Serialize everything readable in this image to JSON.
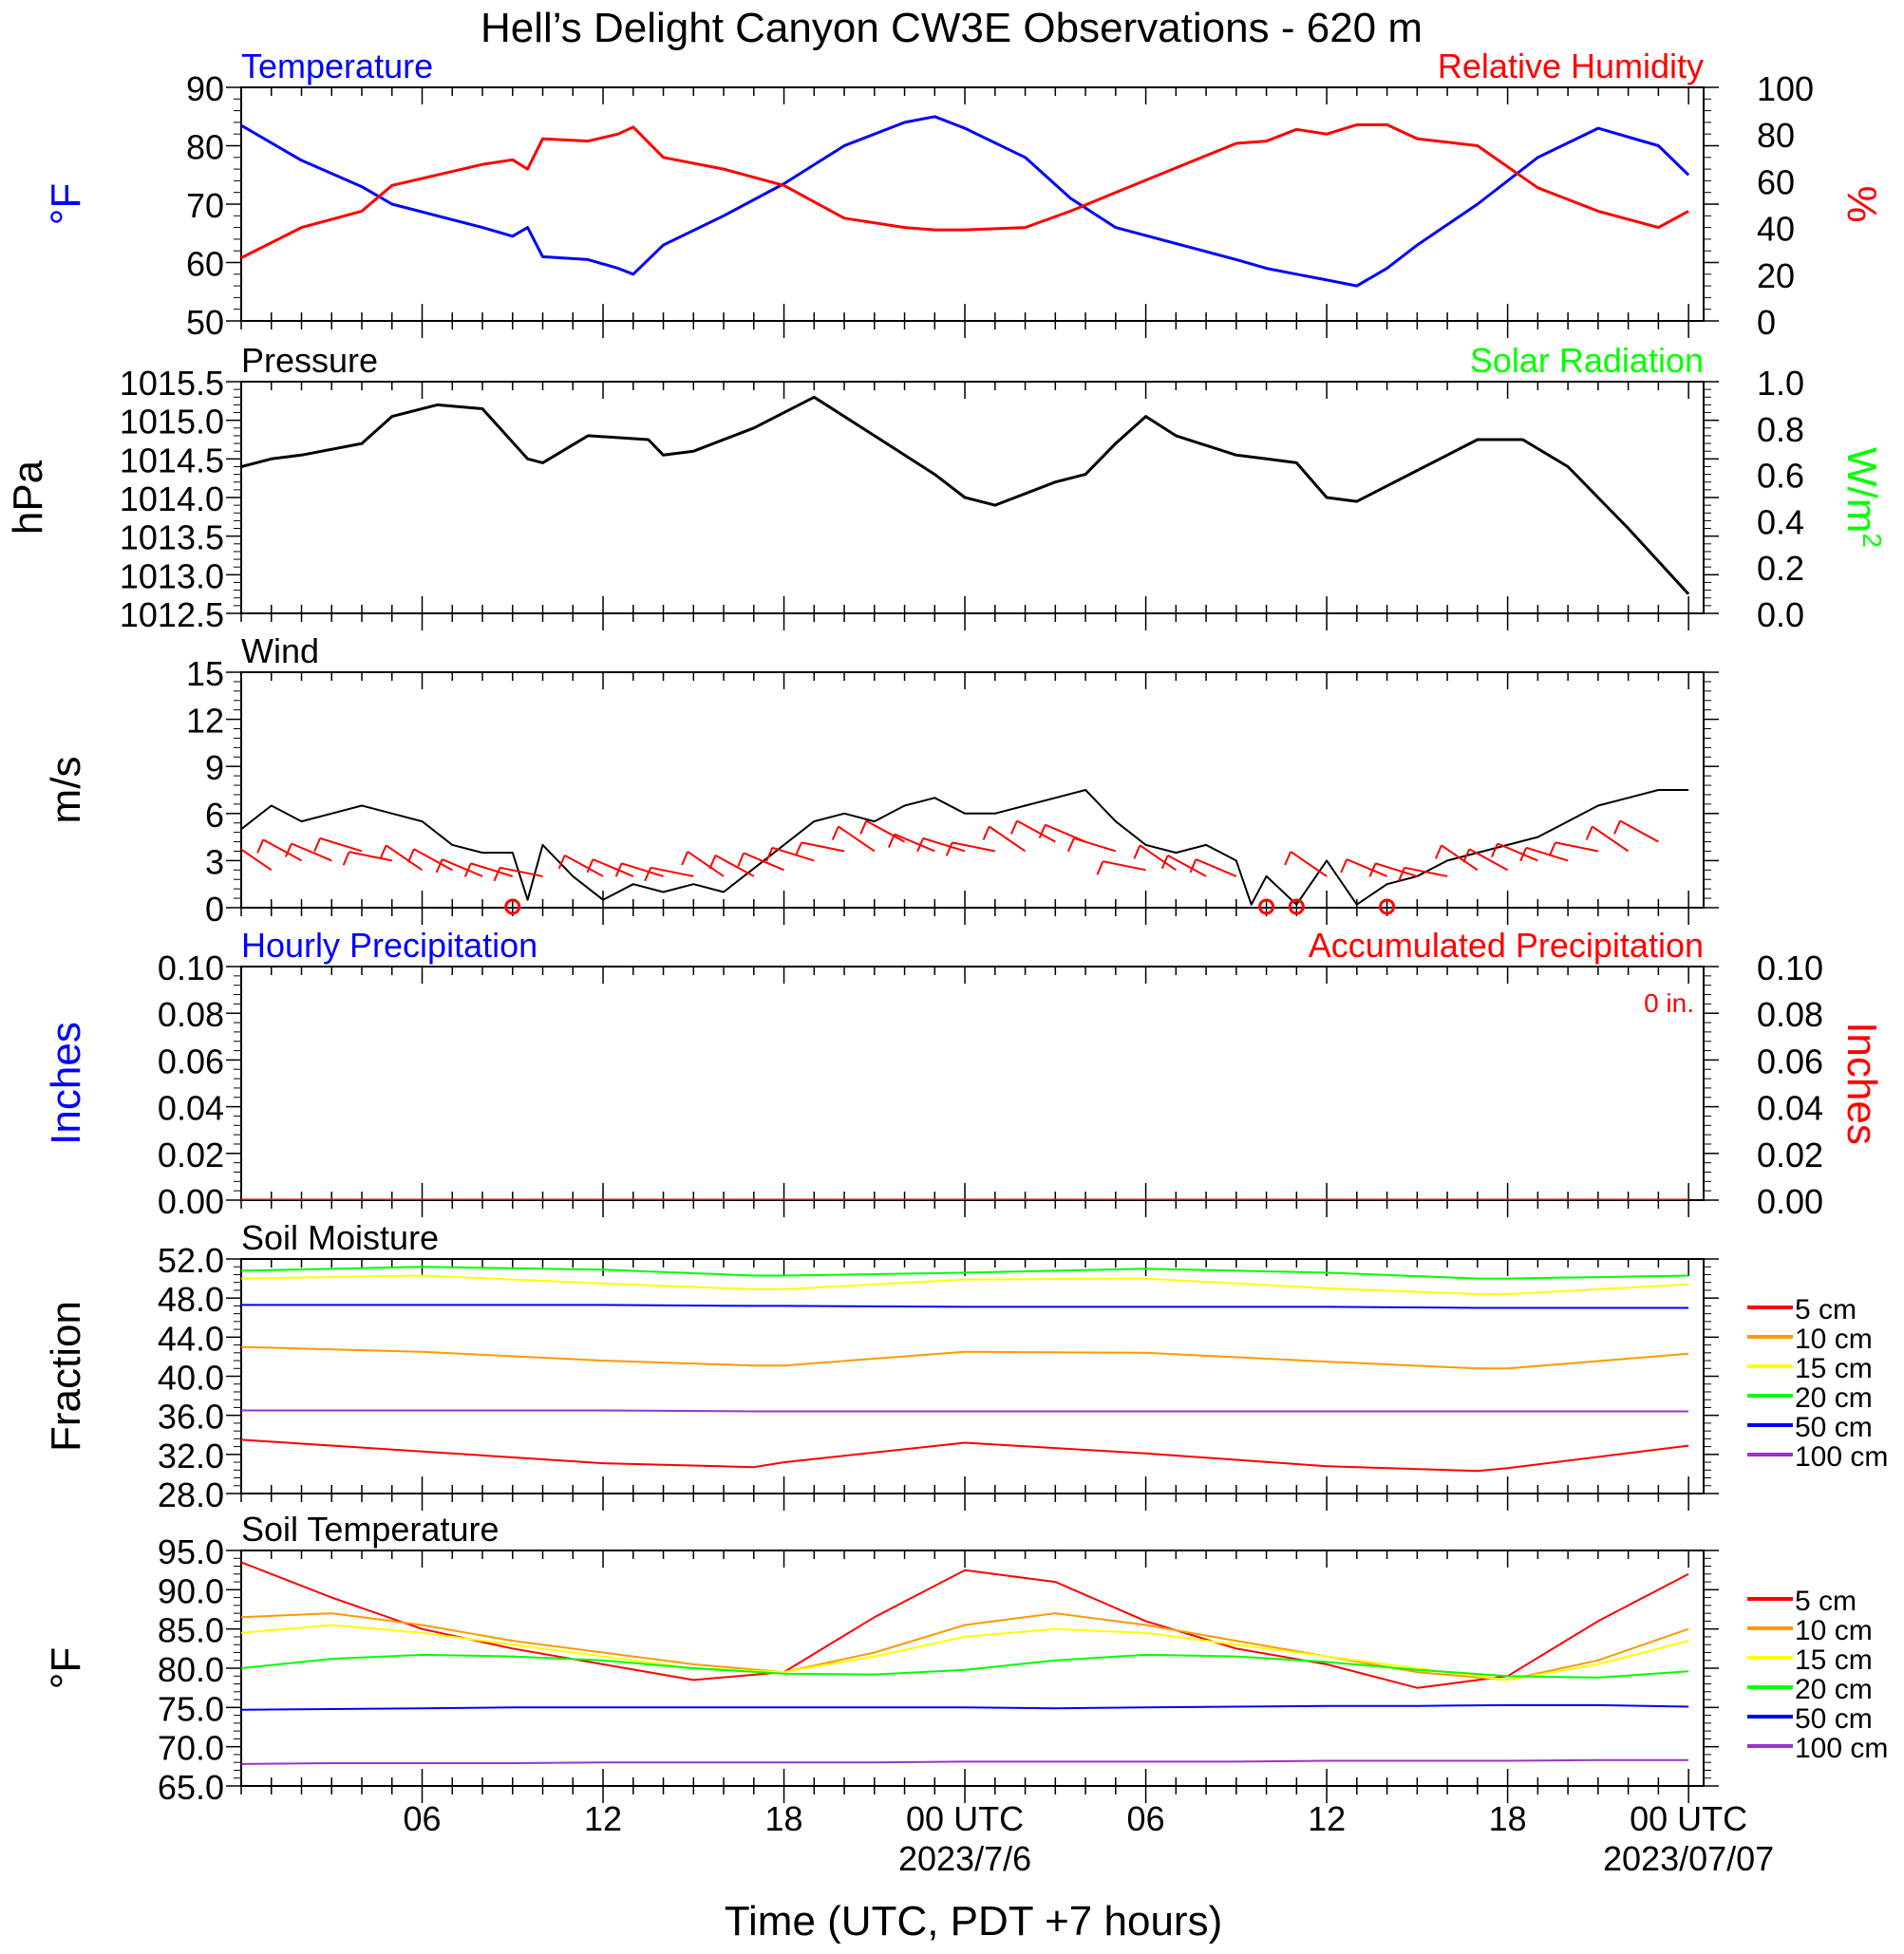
{
  "title": "Hell’s Delight Canyon CW3E Observations - 620 m",
  "xaxis": {
    "label": "Time (UTC, PDT +7 hours)",
    "ticks": [
      "06",
      "12",
      "18",
      "00 UTC",
      "06",
      "12",
      "18",
      "00 UTC"
    ],
    "dates": [
      "2023/7/6",
      "2023/07/07"
    ]
  },
  "colors": {
    "temperature": "#0000ff",
    "humidity": "#ff0000",
    "pressure": "#000000",
    "solar": "#00ff00",
    "wind_speed": "#000000",
    "wind_barb": "#ff0000",
    "hourly_precip": "#0000ff",
    "accum_precip": "#ff0000"
  },
  "chart_data": [
    {
      "type": "line",
      "panel": "temperature_humidity",
      "left_title": "Temperature",
      "right_title": "Relative Humidity",
      "ylabel_left": "°F",
      "ylabel_right": "%",
      "ylim_left": [
        50,
        90
      ],
      "ylim_right": [
        0,
        100
      ],
      "yticks_left": [
        "90",
        "80",
        "70",
        "60",
        "50"
      ],
      "yticks_right": [
        "100",
        "80",
        "60",
        "40",
        "20",
        "0"
      ],
      "x_hours": [
        0,
        2,
        4,
        5,
        8,
        9,
        9.5,
        10,
        11.5,
        12.5,
        13,
        14,
        16,
        18,
        20,
        22,
        23,
        24,
        26,
        27.5,
        29,
        33,
        34,
        35,
        36,
        37,
        38,
        39,
        41,
        43,
        45,
        47,
        48
      ],
      "series": [
        {
          "name": "Temperature",
          "axis": "left",
          "values": [
            83.5,
            77.5,
            73,
            70,
            66,
            64.5,
            66,
            61,
            60.5,
            59,
            58,
            63,
            68,
            73.5,
            80,
            84,
            85,
            83,
            78,
            71,
            66,
            60.5,
            59,
            58,
            57,
            56,
            59,
            63,
            70,
            78,
            83,
            80,
            75
          ]
        },
        {
          "name": "Relative Humidity",
          "axis": "right",
          "values": [
            27,
            40,
            47,
            58,
            67,
            69,
            65,
            78,
            77,
            80,
            83,
            70,
            65,
            58,
            44,
            40,
            39,
            39,
            40,
            47,
            55,
            76,
            77,
            82,
            80,
            84,
            84,
            78,
            75,
            57,
            47,
            40,
            47
          ]
        }
      ]
    },
    {
      "type": "line",
      "panel": "pressure_solar",
      "left_title": "Pressure",
      "right_title": "Solar Radiation",
      "ylabel_left": "hPa",
      "ylabel_right": "W/m",
      "ylabel_right_sup": "2",
      "ylim_left": [
        1012.5,
        1015.5
      ],
      "ylim_right": [
        0,
        1
      ],
      "yticks_left": [
        "1015.5",
        "1015.0",
        "1014.5",
        "1014.0",
        "1013.5",
        "1013.0",
        "1012.5"
      ],
      "yticks_right": [
        "1.0",
        "0.8",
        "0.6",
        "0.4",
        "0.2",
        "0.0"
      ],
      "x_hours": [
        0,
        1,
        2,
        4,
        5,
        6.5,
        8,
        9.5,
        10,
        11.5,
        13.5,
        14,
        15,
        17,
        19,
        21,
        23,
        24,
        25,
        27,
        28,
        29,
        30,
        31,
        33,
        34,
        35,
        36,
        37,
        39,
        40,
        41,
        42.5,
        44,
        46,
        48
      ],
      "series": [
        {
          "name": "Pressure",
          "axis": "left",
          "values": [
            1014.4,
            1014.5,
            1014.55,
            1014.7,
            1015.05,
            1015.2,
            1015.15,
            1014.5,
            1014.45,
            1014.8,
            1014.75,
            1014.55,
            1014.6,
            1014.9,
            1015.3,
            1014.8,
            1014.3,
            1014.0,
            1013.9,
            1014.2,
            1014.3,
            1014.7,
            1015.05,
            1014.8,
            1014.55,
            1014.5,
            1014.45,
            1014.0,
            1013.95,
            1014.35,
            1014.55,
            1014.75,
            1014.75,
            1014.4,
            1013.6,
            1012.75
          ]
        }
      ]
    },
    {
      "type": "line",
      "panel": "wind",
      "left_title": "Wind",
      "ylabel_left": "m/s",
      "ylim_left": [
        0,
        15
      ],
      "yticks_left": [
        "15",
        "12",
        "9",
        "6",
        "3",
        "0"
      ],
      "x_hours": [
        0,
        1,
        2,
        3,
        4,
        5,
        6,
        7,
        8,
        9,
        9.5,
        10,
        11,
        12,
        13,
        14,
        15,
        16,
        17,
        18,
        19,
        20,
        21,
        22,
        23,
        24,
        25,
        26,
        27,
        28,
        29,
        30,
        31,
        32,
        33,
        33.5,
        34,
        35,
        36,
        37,
        38,
        39,
        40,
        41,
        42,
        43,
        44,
        45,
        46,
        47,
        48
      ],
      "series": [
        {
          "name": "Wind Speed",
          "axis": "left",
          "values": [
            5,
            6.5,
            5.5,
            6,
            6.5,
            6,
            5.5,
            4,
            3.5,
            3.5,
            0.5,
            4,
            2,
            0.5,
            1.5,
            1,
            1.5,
            1,
            2.5,
            4,
            5.5,
            6,
            5.5,
            6.5,
            7,
            6,
            6,
            6.5,
            7,
            7.5,
            5.5,
            4,
            3.5,
            4,
            3,
            0.2,
            2,
            0.2,
            3,
            0.2,
            1.5,
            2,
            3,
            3.5,
            4,
            4.5,
            5.5,
            6.5,
            7,
            7.5,
            7.5
          ]
        }
      ],
      "barbs_hours": [
        1,
        2,
        3,
        4,
        5,
        6,
        7,
        8,
        9,
        10,
        11,
        12,
        13,
        14,
        15,
        16,
        17,
        18,
        19,
        20,
        21,
        22,
        23,
        24,
        25,
        26,
        27,
        28,
        29,
        30,
        31,
        32,
        33,
        34,
        35,
        36,
        37,
        38,
        39,
        40,
        41,
        42,
        43,
        44,
        45,
        46,
        47
      ],
      "barbs_speed": [
        4,
        5,
        5,
        6,
        5,
        4,
        4,
        3,
        3,
        3,
        0,
        2,
        1,
        1,
        1,
        2,
        3,
        4,
        5,
        6,
        6,
        7,
        6,
        6,
        6,
        6,
        7,
        7,
        6,
        4,
        4,
        3,
        3,
        0,
        0,
        2,
        0,
        2,
        3,
        3,
        4,
        4,
        5,
        5,
        6,
        6,
        7
      ],
      "calm_hours": [
        9,
        34,
        35,
        38
      ]
    },
    {
      "type": "line",
      "panel": "precipitation",
      "left_title": "Hourly Precipitation",
      "right_title": "Accumulated Precipitation",
      "annotation": "0 in.",
      "ylabel_left": "Inches",
      "ylabel_right": "Inches",
      "ylim_left": [
        0,
        0.1
      ],
      "ylim_right": [
        0,
        0.1
      ],
      "yticks_left": [
        "0.10",
        "0.08",
        "0.06",
        "0.04",
        "0.02",
        "0.00"
      ],
      "yticks_right": [
        "0.10",
        "0.08",
        "0.06",
        "0.04",
        "0.02",
        "0.00"
      ],
      "x_hours": [
        0,
        48
      ],
      "series": [
        {
          "name": "Hourly Precipitation",
          "axis": "left",
          "values": [
            0,
            0
          ]
        },
        {
          "name": "Accumulated Precipitation",
          "axis": "right",
          "values": [
            0,
            0
          ]
        }
      ]
    },
    {
      "type": "line",
      "panel": "soil_moisture",
      "left_title": "Soil Moisture",
      "ylabel_left": "Fraction",
      "ylim_left": [
        28,
        52
      ],
      "yticks_left": [
        "52.0",
        "48.0",
        "44.0",
        "40.0",
        "36.0",
        "32.0",
        "28.0"
      ],
      "x_hours": [
        0,
        6,
        12,
        17,
        18,
        24,
        30,
        36,
        41,
        42,
        48
      ],
      "series": [
        {
          "name": "5 cm",
          "color": "#ff0000",
          "values": [
            33.5,
            32.3,
            31.1,
            30.7,
            31.2,
            33.2,
            32.1,
            30.8,
            30.3,
            30.6,
            32.9
          ]
        },
        {
          "name": "10 cm",
          "color": "#ff9900",
          "values": [
            43,
            42.5,
            41.6,
            41.1,
            41.1,
            42.5,
            42.4,
            41.5,
            40.8,
            40.8,
            42.3
          ]
        },
        {
          "name": "15 cm",
          "color": "#ffff00",
          "values": [
            50,
            50.3,
            49.5,
            48.9,
            48.9,
            49.9,
            50.0,
            49.0,
            48.4,
            48.4,
            49.4
          ]
        },
        {
          "name": "20 cm",
          "color": "#00ff00",
          "values": [
            50.8,
            51.2,
            50.9,
            50.3,
            50.3,
            50.6,
            51.0,
            50.6,
            50.0,
            50.0,
            50.3
          ]
        },
        {
          "name": "50 cm",
          "color": "#0000ff",
          "values": [
            47.3,
            47.3,
            47.3,
            47.2,
            47.2,
            47.1,
            47.1,
            47.1,
            47.0,
            47.0,
            47.0
          ]
        },
        {
          "name": "100 cm",
          "color": "#9933cc",
          "values": [
            36.5,
            36.5,
            36.5,
            36.4,
            36.4,
            36.4,
            36.4,
            36.4,
            36.4,
            36.4,
            36.4
          ]
        }
      ]
    },
    {
      "type": "line",
      "panel": "soil_temperature",
      "left_title": "Soil Temperature",
      "ylabel_left": "°F",
      "ylim_left": [
        65,
        95
      ],
      "yticks_left": [
        "95.0",
        "90.0",
        "85.0",
        "80.0",
        "75.0",
        "70.0",
        "65.0"
      ],
      "x_hours": [
        0,
        3,
        6,
        9,
        12,
        15,
        18,
        21,
        24,
        27,
        30,
        33,
        36,
        39,
        42,
        45,
        48
      ],
      "series": [
        {
          "name": "5 cm",
          "color": "#ff0000",
          "values": [
            93.5,
            89,
            85,
            82.5,
            80.5,
            78.5,
            79.5,
            86.5,
            92.5,
            91,
            86,
            82.5,
            80.5,
            77.5,
            79,
            86,
            92
          ]
        },
        {
          "name": "10 cm",
          "color": "#ff9900",
          "values": [
            86.5,
            87,
            85.5,
            83.5,
            82,
            80.5,
            79.5,
            82,
            85.5,
            87,
            85.5,
            83.5,
            81.5,
            79.5,
            78.5,
            81,
            85
          ]
        },
        {
          "name": "15 cm",
          "color": "#ffff00",
          "values": [
            84.5,
            85.5,
            84.5,
            83,
            81.5,
            80,
            79.5,
            81.5,
            84,
            85,
            84.5,
            83,
            81.5,
            80,
            78.5,
            80.5,
            83.5
          ]
        },
        {
          "name": "20 cm",
          "color": "#00ff00",
          "values": [
            80,
            81.2,
            81.7,
            81.5,
            81,
            80,
            79.3,
            79.2,
            79.8,
            81,
            81.7,
            81.5,
            80.8,
            79.8,
            79,
            78.8,
            79.6
          ]
        },
        {
          "name": "50 cm",
          "color": "#0000ff",
          "values": [
            74.7,
            74.8,
            74.9,
            75.0,
            75.0,
            75.0,
            75.0,
            75.0,
            75.0,
            74.9,
            75.0,
            75.1,
            75.2,
            75.2,
            75.3,
            75.3,
            75.1
          ]
        },
        {
          "name": "100 cm",
          "color": "#9933cc",
          "values": [
            67.8,
            67.9,
            67.9,
            67.9,
            68.0,
            68.0,
            68.0,
            68.0,
            68.1,
            68.1,
            68.1,
            68.1,
            68.2,
            68.2,
            68.2,
            68.3,
            68.3
          ]
        }
      ]
    }
  ]
}
